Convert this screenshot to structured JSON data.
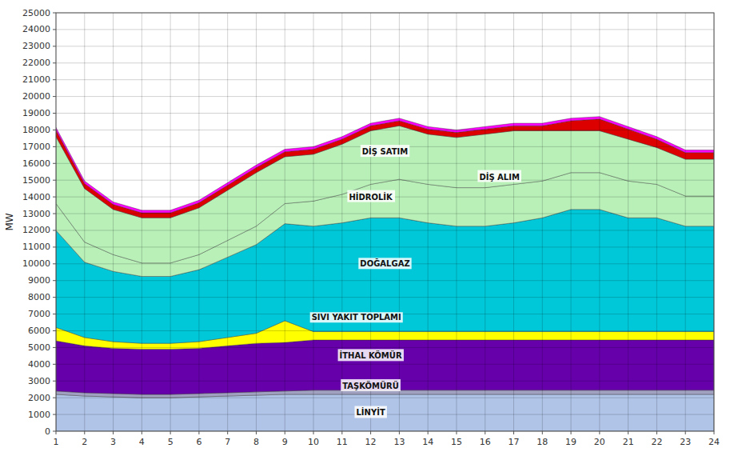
{
  "chart_data": {
    "type": "area",
    "stacked": true,
    "grid": true,
    "y_label": "MW",
    "x": [
      1,
      2,
      3,
      4,
      5,
      6,
      7,
      8,
      9,
      10,
      11,
      12,
      13,
      14,
      15,
      16,
      17,
      18,
      19,
      20,
      21,
      22,
      23,
      24
    ],
    "xlim": [
      1,
      24
    ],
    "xticks": [
      1,
      2,
      3,
      4,
      5,
      6,
      7,
      8,
      9,
      10,
      11,
      12,
      13,
      14,
      15,
      16,
      17,
      18,
      19,
      20,
      21,
      22,
      23,
      24
    ],
    "ylim": [
      0,
      25000
    ],
    "yticks": [
      0,
      1000,
      2000,
      3000,
      4000,
      5000,
      6000,
      7000,
      8000,
      9000,
      10000,
      11000,
      12000,
      13000,
      14000,
      15000,
      16000,
      17000,
      18000,
      19000,
      20000,
      21000,
      22000,
      23000,
      24000,
      25000
    ],
    "series": [
      {
        "color": "#b0c4e8",
        "values": [
          2200,
          2100,
          2050,
          2000,
          2000,
          2050,
          2100,
          2150,
          2200,
          2200,
          2200,
          2200,
          2200,
          2200,
          2200,
          2200,
          2200,
          2200,
          2200,
          2200,
          2200,
          2200,
          2200,
          2200
        ]
      },
      {
        "color": "#a0a0c0",
        "values": [
          200,
          200,
          200,
          200,
          200,
          200,
          200,
          200,
          200,
          250,
          250,
          250,
          250,
          250,
          250,
          250,
          250,
          250,
          250,
          250,
          250,
          250,
          250,
          250
        ]
      },
      {
        "color": "#6600aa",
        "values": [
          3000,
          2800,
          2700,
          2700,
          2700,
          2700,
          2800,
          2900,
          2900,
          3000,
          3000,
          3000,
          3000,
          3000,
          3000,
          3000,
          3000,
          3000,
          3000,
          3000,
          3000,
          3000,
          3000,
          3000
        ]
      },
      {
        "color": "#ffff00",
        "values": [
          800,
          500,
          400,
          350,
          350,
          400,
          500,
          600,
          1300,
          500,
          500,
          500,
          500,
          500,
          500,
          500,
          500,
          500,
          500,
          500,
          500,
          500,
          500,
          500
        ]
      },
      {
        "color": "#00c8d8",
        "values": [
          5800,
          4500,
          4200,
          4000,
          4000,
          4300,
          4800,
          5300,
          5800,
          6300,
          6500,
          6800,
          6800,
          6500,
          6300,
          6300,
          6500,
          6800,
          7300,
          7300,
          6800,
          6800,
          6300,
          6300
        ]
      },
      {
        "color": "#b8f0b8",
        "values": [
          1600,
          1200,
          1000,
          800,
          800,
          900,
          1000,
          1100,
          1200,
          1500,
          1700,
          2000,
          2300,
          2300,
          2300,
          2300,
          2300,
          2200,
          2200,
          2200,
          2200,
          2000,
          1800,
          1800
        ]
      },
      {
        "color": "#b8f0b8",
        "values": [
          4000,
          3200,
          2700,
          2700,
          2700,
          2800,
          3000,
          3200,
          2800,
          2800,
          3000,
          3200,
          3200,
          3000,
          3000,
          3200,
          3200,
          3000,
          2500,
          2500,
          2500,
          2200,
          2200,
          2200
        ]
      },
      {
        "color": "#dd0000",
        "values": [
          400,
          300,
          300,
          300,
          300,
          300,
          300,
          300,
          300,
          300,
          300,
          300,
          300,
          300,
          300,
          300,
          300,
          300,
          600,
          700,
          600,
          500,
          400,
          400
        ]
      },
      {
        "color": "#ff00ff",
        "values": [
          150,
          150,
          150,
          150,
          150,
          150,
          150,
          150,
          150,
          150,
          150,
          150,
          150,
          150,
          150,
          150,
          150,
          150,
          150,
          150,
          150,
          150,
          150,
          150
        ]
      }
    ],
    "annotations": [
      {
        "text": "DOĞALGAZ",
        "x": 12.5,
        "y": 10000
      },
      {
        "text": "İTHAL KÖMÜR",
        "x": 12.0,
        "y": 4500
      },
      {
        "text": "TAŞKÖMÜRÜ",
        "x": 12.0,
        "y": 2700
      },
      {
        "text": "LİNYİT",
        "x": 12.0,
        "y": 1100
      },
      {
        "text": "SIVI YAKIT TOPLAMI",
        "x": 11.5,
        "y": 6800
      },
      {
        "text": "HİDROLİK",
        "x": 12.0,
        "y": 14000
      },
      {
        "text": "DİŞ ALIM",
        "x": 16.5,
        "y": 15200
      },
      {
        "text": "DİŞ SATIM",
        "x": 12.5,
        "y": 16700
      }
    ]
  }
}
